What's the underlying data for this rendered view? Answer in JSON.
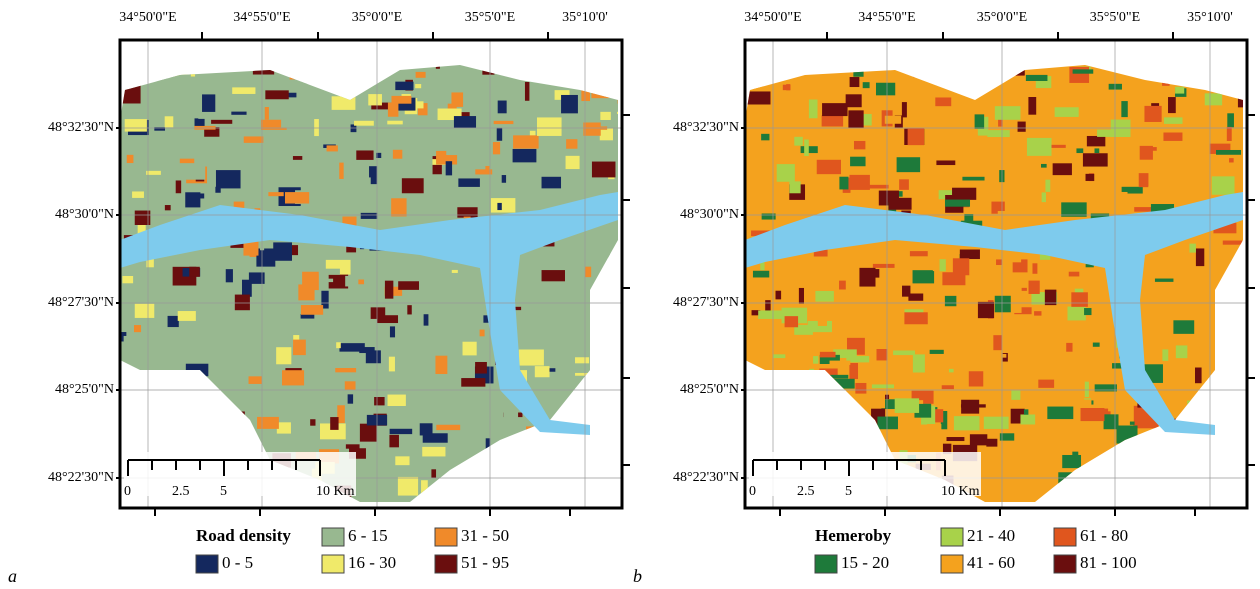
{
  "panels": [
    {
      "label": "a",
      "lon_labels": [
        "34°50'0\"E",
        "34°55'0\"E",
        "35°0'0\"E",
        "35°5'0\"E",
        "35°10'0'"
      ],
      "lat_labels": [
        "48°32'30\"N",
        "48°30'0\"N",
        "48°27'30\"N",
        "48°25'0\"N",
        "48°22'30\"N"
      ],
      "scale_labels": [
        "0",
        "2.5",
        "5",
        "10 Km"
      ],
      "legend": {
        "title": "Road density",
        "classes": [
          {
            "label": "0 - 5",
            "color": "#14285e"
          },
          {
            "label": "6 - 15",
            "color": "#98b890"
          },
          {
            "label": "16 - 30",
            "color": "#f0ea6a"
          },
          {
            "label": "31 - 50",
            "color": "#f08a2a"
          },
          {
            "label": "51 - 95",
            "color": "#6a0e0e"
          }
        ]
      }
    },
    {
      "label": "b",
      "lon_labels": [
        "34°50'0\"E",
        "34°55'0\"E",
        "35°0'0\"E",
        "35°5'0\"E",
        "35°10'0'"
      ],
      "lat_labels": [
        "48°32'30\"N",
        "48°30'0\"N",
        "48°27'30\"N",
        "48°25'0\"N",
        "48°22'30\"N"
      ],
      "scale_labels": [
        "0",
        "2.5",
        "5",
        "10 Km"
      ],
      "legend": {
        "title": "Hemeroby",
        "classes": [
          {
            "label": "15 - 20",
            "color": "#1e7a3a"
          },
          {
            "label": "21 - 40",
            "color": "#a8d24a"
          },
          {
            "label": "41 - 60",
            "color": "#f4a21e"
          },
          {
            "label": "61 - 80",
            "color": "#e0561e"
          },
          {
            "label": "81 - 100",
            "color": "#6a0e0e"
          }
        ]
      }
    }
  ]
}
